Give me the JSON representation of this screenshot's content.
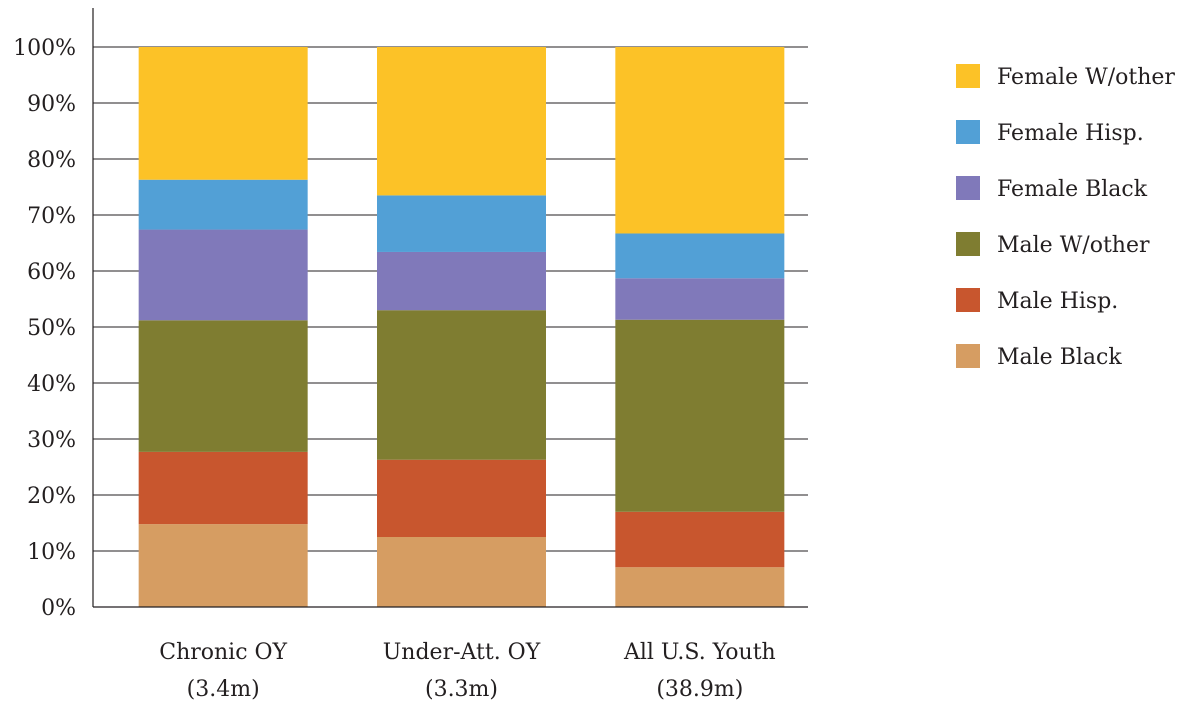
{
  "chart_data": {
    "type": "bar",
    "stacked": true,
    "categories": [
      [
        "Chronic OY",
        "(3.4m)"
      ],
      [
        "Under-Att. OY",
        "(3.3m)"
      ],
      [
        "All U.S. Youth",
        "(38.9m)"
      ]
    ],
    "series": [
      {
        "name": "Male Black",
        "color": "#d69d62",
        "values": [
          14.8,
          12.5,
          7.1
        ]
      },
      {
        "name": "Male Hisp.",
        "color": "#c8562e",
        "values": [
          12.9,
          13.8,
          9.9
        ]
      },
      {
        "name": "Male W/other",
        "color": "#7f7d31",
        "values": [
          23.5,
          26.7,
          34.3
        ]
      },
      {
        "name": "Female Black",
        "color": "#8079ba",
        "values": [
          16.2,
          10.4,
          7.4
        ]
      },
      {
        "name": "Female Hisp.",
        "color": "#52a0d6",
        "values": [
          8.9,
          10.1,
          8.0
        ]
      },
      {
        "name": "Female W/other",
        "color": "#fcc227",
        "values": [
          23.7,
          26.5,
          33.3
        ]
      }
    ],
    "yticks": [
      "0%",
      "10%",
      "20%",
      "30%",
      "40%",
      "50%",
      "60%",
      "70%",
      "80%",
      "90%",
      "100%"
    ],
    "ylim": [
      0,
      100
    ],
    "grid": true,
    "legend_position": "right",
    "legend_order": [
      "Female W/other",
      "Female Hisp.",
      "Female Black",
      "Male W/other",
      "Male Hisp.",
      "Male Black"
    ],
    "title": "",
    "xlabel": "",
    "ylabel": ""
  }
}
